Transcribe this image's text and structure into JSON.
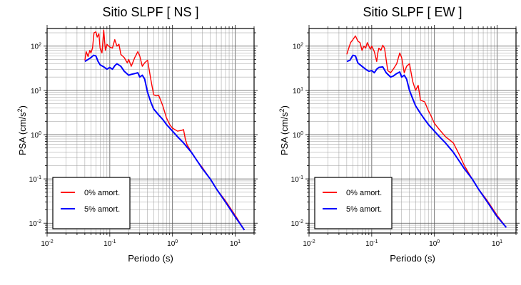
{
  "chart_data": [
    {
      "type": "line",
      "title": "Sitio SLPF [ NS ]",
      "xlabel": "Periodo (s)",
      "ylabel_main": "PSA (cm/s",
      "ylabel_sup": "2",
      "ylabel_tail": ")",
      "xscale": "log",
      "yscale": "log",
      "xlim": [
        0.01,
        20
      ],
      "ylim": [
        0.006,
        250
      ],
      "grid": true,
      "legend_position": "bottom-left",
      "x_tick_labels": [
        {
          "base": "10",
          "exp": "-2"
        },
        {
          "base": "10",
          "exp": "-1"
        },
        {
          "base": "10",
          "exp": "0"
        },
        {
          "base": "10",
          "exp": "1"
        }
      ],
      "y_tick_labels": [
        {
          "base": "10",
          "exp": "-2"
        },
        {
          "base": "10",
          "exp": "-1"
        },
        {
          "base": "10",
          "exp": "0"
        },
        {
          "base": "10",
          "exp": "1"
        },
        {
          "base": "10",
          "exp": "2"
        }
      ],
      "series": [
        {
          "name": "0% amort.",
          "color": "#ff0000",
          "x": [
            0.04,
            0.042,
            0.045,
            0.048,
            0.05,
            0.053,
            0.056,
            0.06,
            0.063,
            0.067,
            0.07,
            0.075,
            0.08,
            0.085,
            0.09,
            0.1,
            0.11,
            0.12,
            0.13,
            0.14,
            0.15,
            0.17,
            0.19,
            0.2,
            0.22,
            0.25,
            0.28,
            0.3,
            0.33,
            0.36,
            0.4,
            0.45,
            0.5,
            0.55,
            0.6,
            0.7,
            0.8,
            0.9,
            1.0,
            1.2,
            1.4,
            1.5,
            1.6,
            1.7,
            2.0,
            2.5,
            3.0,
            4.0,
            5.0,
            7.0,
            10.0,
            14.0
          ],
          "y": [
            48,
            75,
            58,
            80,
            70,
            90,
            200,
            210,
            160,
            190,
            90,
            70,
            230,
            80,
            110,
            95,
            90,
            140,
            100,
            110,
            65,
            55,
            42,
            50,
            35,
            55,
            75,
            60,
            35,
            42,
            48,
            18,
            8,
            7.5,
            7.8,
            4.5,
            2.4,
            1.7,
            1.4,
            1.2,
            1.25,
            1.3,
            0.8,
            0.6,
            0.4,
            0.25,
            0.18,
            0.1,
            0.06,
            0.032,
            0.015,
            0.007
          ]
        },
        {
          "name": "5% amort.",
          "color": "#0000ff",
          "x": [
            0.04,
            0.045,
            0.05,
            0.055,
            0.06,
            0.065,
            0.07,
            0.08,
            0.09,
            0.1,
            0.11,
            0.12,
            0.13,
            0.15,
            0.17,
            0.2,
            0.22,
            0.25,
            0.28,
            0.3,
            0.33,
            0.36,
            0.4,
            0.45,
            0.5,
            0.6,
            0.7,
            0.8,
            1.0,
            1.2,
            1.5,
            2.0,
            2.5,
            3.0,
            4.0,
            5.0,
            7.0,
            10.0,
            14.0
          ],
          "y": [
            45,
            50,
            55,
            62,
            60,
            45,
            38,
            34,
            30,
            33,
            30,
            36,
            40,
            35,
            27,
            22,
            23,
            24,
            25,
            20,
            22,
            18,
            9,
            5.5,
            3.8,
            2.8,
            2.2,
            1.7,
            1.2,
            0.9,
            0.65,
            0.4,
            0.25,
            0.17,
            0.1,
            0.06,
            0.03,
            0.014,
            0.007
          ]
        }
      ]
    },
    {
      "type": "line",
      "title": "Sitio SLPF [ EW ]",
      "xlabel": "Periodo (s)",
      "ylabel_main": "PSA (cm/s",
      "ylabel_sup": "2",
      "ylabel_tail": ")",
      "xscale": "log",
      "yscale": "log",
      "xlim": [
        0.01,
        20
      ],
      "ylim": [
        0.006,
        250
      ],
      "grid": true,
      "legend_position": "bottom-left",
      "x_tick_labels": [
        {
          "base": "10",
          "exp": "-2"
        },
        {
          "base": "10",
          "exp": "-1"
        },
        {
          "base": "10",
          "exp": "0"
        },
        {
          "base": "10",
          "exp": "1"
        }
      ],
      "y_tick_labels": [
        {
          "base": "10",
          "exp": "-2"
        },
        {
          "base": "10",
          "exp": "-1"
        },
        {
          "base": "10",
          "exp": "0"
        },
        {
          "base": "10",
          "exp": "1"
        },
        {
          "base": "10",
          "exp": "2"
        }
      ],
      "series": [
        {
          "name": "0% amort.",
          "color": "#ff0000",
          "x": [
            0.04,
            0.043,
            0.046,
            0.05,
            0.055,
            0.06,
            0.065,
            0.07,
            0.075,
            0.08,
            0.085,
            0.09,
            0.095,
            0.1,
            0.11,
            0.12,
            0.125,
            0.13,
            0.14,
            0.15,
            0.16,
            0.18,
            0.2,
            0.22,
            0.25,
            0.28,
            0.3,
            0.33,
            0.36,
            0.4,
            0.45,
            0.5,
            0.55,
            0.6,
            0.7,
            0.8,
            0.9,
            1.0,
            1.2,
            1.5,
            2.0,
            2.5,
            3.0,
            4.0,
            5.0,
            7.0,
            10.0,
            14.0
          ],
          "y": [
            65,
            90,
            120,
            140,
            170,
            130,
            120,
            80,
            100,
            90,
            120,
            100,
            85,
            100,
            75,
            45,
            70,
            90,
            80,
            105,
            90,
            28,
            25,
            30,
            40,
            70,
            55,
            25,
            35,
            40,
            16,
            10,
            13,
            6,
            5.5,
            3.5,
            2.5,
            1.8,
            1.3,
            0.9,
            0.65,
            0.35,
            0.2,
            0.1,
            0.06,
            0.032,
            0.015,
            0.008
          ]
        },
        {
          "name": "5% amort.",
          "color": "#0000ff",
          "x": [
            0.04,
            0.045,
            0.05,
            0.055,
            0.06,
            0.065,
            0.07,
            0.08,
            0.09,
            0.1,
            0.11,
            0.12,
            0.13,
            0.15,
            0.17,
            0.2,
            0.22,
            0.25,
            0.28,
            0.3,
            0.33,
            0.36,
            0.4,
            0.45,
            0.5,
            0.6,
            0.7,
            0.8,
            1.0,
            1.2,
            1.5,
            2.0,
            2.5,
            3.0,
            4.0,
            5.0,
            7.0,
            10.0,
            14.0
          ],
          "y": [
            45,
            48,
            62,
            60,
            42,
            38,
            35,
            30,
            27,
            28,
            25,
            30,
            33,
            34,
            25,
            20,
            21,
            24,
            26,
            20,
            22,
            18,
            10,
            6.5,
            4.5,
            3.0,
            2.2,
            1.7,
            1.2,
            0.9,
            0.65,
            0.4,
            0.25,
            0.17,
            0.1,
            0.06,
            0.03,
            0.014,
            0.008
          ]
        }
      ]
    }
  ]
}
